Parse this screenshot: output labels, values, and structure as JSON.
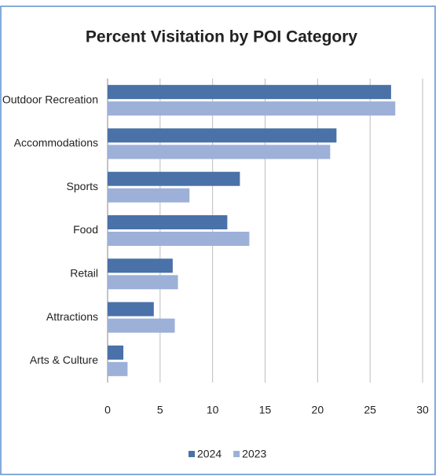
{
  "chart_data": {
    "type": "hbar",
    "title": "Percent Visitation by POI Category",
    "categories": [
      "Outdoor Recreation",
      "Accommodations",
      "Sports",
      "Food",
      "Retail",
      "Attractions",
      "Arts & Culture"
    ],
    "series": [
      {
        "name": "2024",
        "color": "#4a71a8",
        "values": [
          27.0,
          21.8,
          12.6,
          11.4,
          6.2,
          4.4,
          1.5
        ]
      },
      {
        "name": "2023",
        "color": "#9db0d8",
        "values": [
          27.4,
          21.2,
          7.8,
          13.5,
          6.7,
          6.4,
          1.9
        ]
      }
    ],
    "xlim": [
      0,
      30
    ],
    "xticks": [
      0,
      5,
      10,
      15,
      20,
      25,
      30
    ],
    "grid": true,
    "legend": "bottom"
  }
}
